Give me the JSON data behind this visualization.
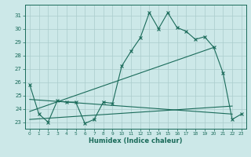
{
  "xlabel": "Humidex (Indice chaleur)",
  "background_color": "#cce8e8",
  "grid_color": "#aacccc",
  "line_color": "#1a6b5a",
  "xlim": [
    -0.5,
    23.5
  ],
  "ylim": [
    22.5,
    31.8
  ],
  "yticks": [
    23,
    24,
    25,
    26,
    27,
    28,
    29,
    30,
    31
  ],
  "xticks": [
    0,
    1,
    2,
    3,
    4,
    5,
    6,
    7,
    8,
    9,
    10,
    11,
    12,
    13,
    14,
    15,
    16,
    17,
    18,
    19,
    20,
    21,
    22,
    23
  ],
  "series1_x": [
    0,
    1,
    2,
    3,
    4,
    5,
    6,
    7,
    8,
    9,
    10,
    11,
    12,
    13,
    14,
    15,
    16,
    17,
    18,
    19,
    20,
    21,
    22,
    23
  ],
  "series1_y": [
    25.8,
    23.6,
    23.0,
    24.6,
    24.5,
    24.5,
    22.9,
    23.2,
    24.5,
    24.4,
    27.2,
    28.3,
    29.3,
    31.2,
    30.0,
    31.2,
    30.1,
    29.8,
    29.2,
    29.4,
    28.6,
    26.7,
    23.2,
    23.6
  ],
  "series2_x": [
    0,
    20
  ],
  "series2_y": [
    23.8,
    28.6
  ],
  "series3_x": [
    0,
    22
  ],
  "series3_y": [
    23.2,
    24.2
  ],
  "series4_x": [
    0,
    22
  ],
  "series4_y": [
    24.7,
    23.6
  ]
}
